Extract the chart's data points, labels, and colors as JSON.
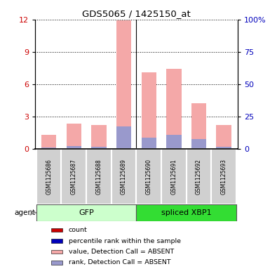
{
  "title": "GDS5065 / 1425150_at",
  "samples": [
    "GSM1125686",
    "GSM1125687",
    "GSM1125688",
    "GSM1125689",
    "GSM1125690",
    "GSM1125691",
    "GSM1125692",
    "GSM1125693"
  ],
  "pink_values": [
    1.3,
    2.3,
    2.2,
    11.9,
    7.1,
    7.4,
    4.2,
    2.2
  ],
  "blue_values": [
    0.15,
    0.25,
    0.2,
    2.1,
    1.0,
    1.3,
    0.9,
    0.2
  ],
  "ylim_left": [
    0,
    12
  ],
  "ylim_right": [
    0,
    100
  ],
  "yticks_left": [
    0,
    3,
    6,
    9,
    12
  ],
  "yticks_right": [
    0,
    25,
    50,
    75,
    100
  ],
  "ytick_labels_right": [
    "0",
    "25",
    "50",
    "75",
    "100%"
  ],
  "pink_color": "#f4a8a8",
  "blue_color": "#9999cc",
  "red_color": "#cc0000",
  "dark_blue_color": "#0000bb",
  "gfp_color_light": "#ccffcc",
  "gfp_color_dark": "#33dd33",
  "bar_width": 0.6,
  "legend_items": [
    "count",
    "percentile rank within the sample",
    "value, Detection Call = ABSENT",
    "rank, Detection Call = ABSENT"
  ],
  "legend_colors": [
    "#cc0000",
    "#0000bb",
    "#f4a8a8",
    "#9999cc"
  ],
  "figsize": [
    3.85,
    3.93
  ],
  "dpi": 100
}
